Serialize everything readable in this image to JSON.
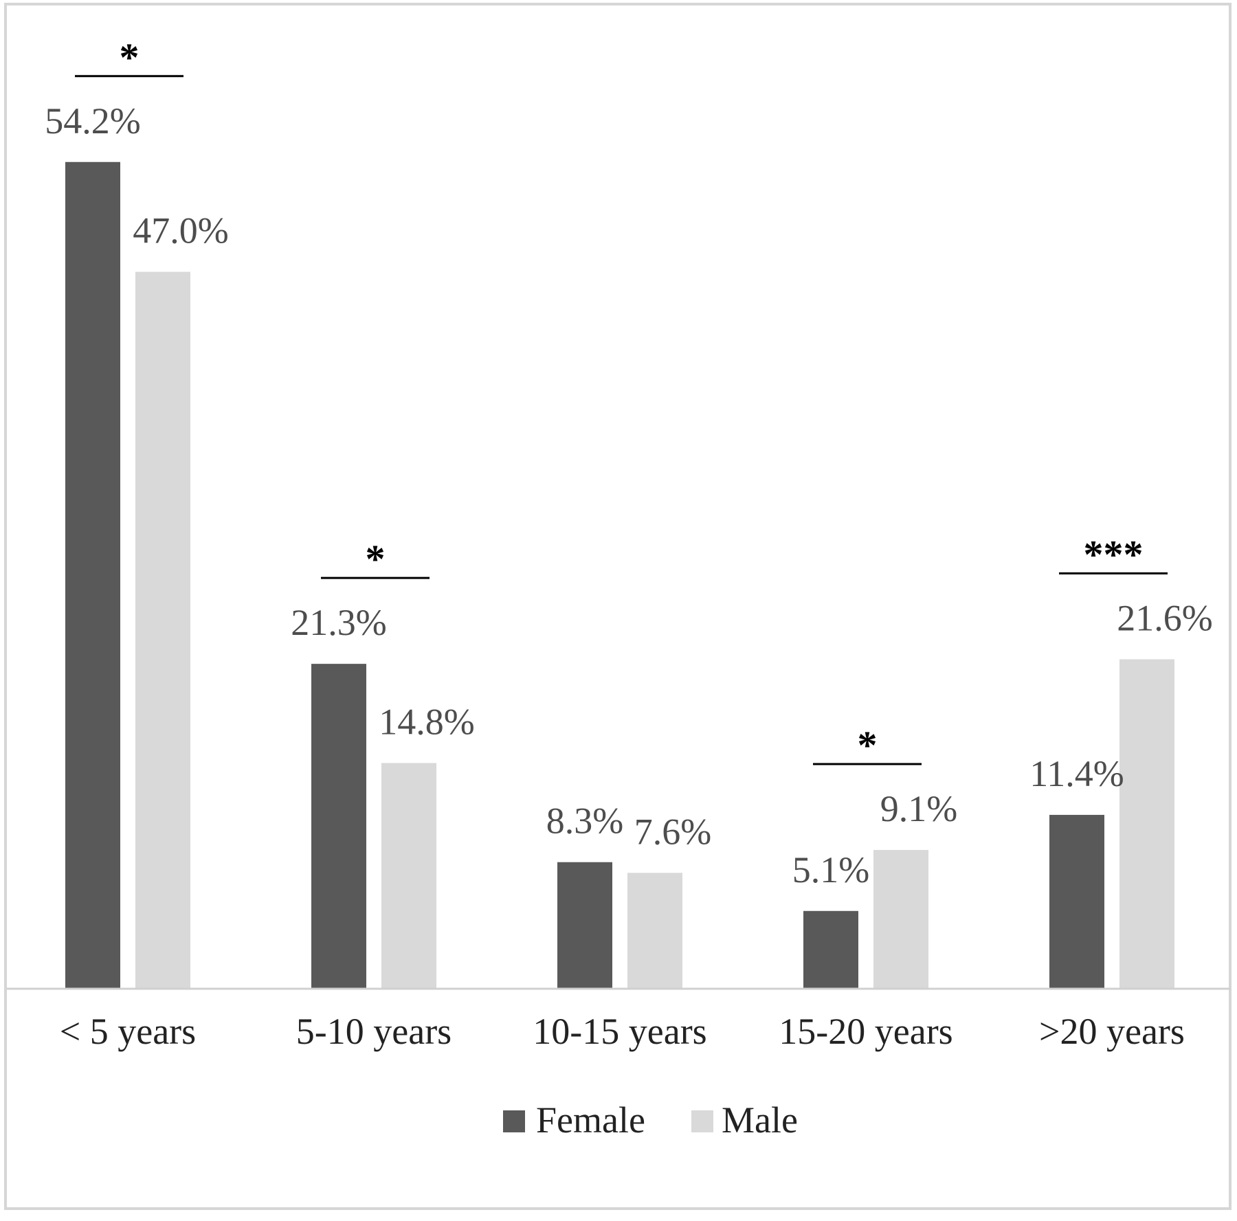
{
  "chart_data": {
    "type": "bar",
    "categories": [
      "< 5 years",
      "5-10 years",
      "10-15 years",
      "15-20 years",
      ">20 years"
    ],
    "series": [
      {
        "name": "Female",
        "values": [
          54.2,
          21.3,
          8.3,
          5.1,
          11.4
        ],
        "labels": [
          "54.2%",
          "21.3%",
          "8.3%",
          "5.1%",
          "11.4%"
        ],
        "color": "#595959"
      },
      {
        "name": "Male",
        "values": [
          47.0,
          14.8,
          7.6,
          9.1,
          21.6
        ],
        "labels": [
          "47.0%",
          "14.8%",
          "7.6%",
          "9.1%",
          "21.6%"
        ],
        "color": "#d9d9d9"
      }
    ],
    "significance": [
      "*",
      "*",
      "",
      "*",
      "***"
    ],
    "ylim": [
      0,
      60
    ],
    "grid": false,
    "legend_position": "bottom"
  }
}
